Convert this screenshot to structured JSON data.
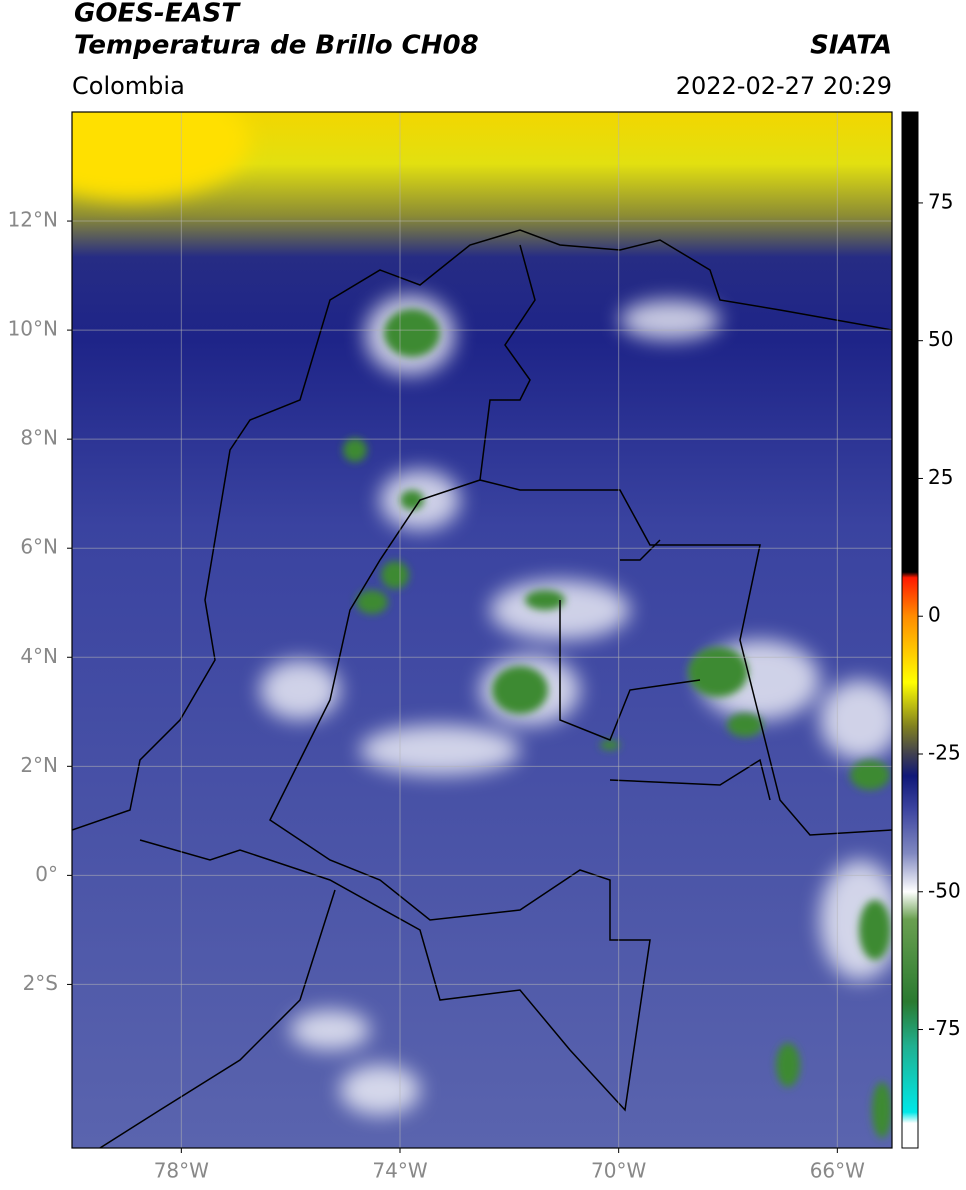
{
  "chart_data": {
    "type": "map",
    "title": "GOES-EAST",
    "subtitle": "Temperatura de Brillo CH08",
    "source": "SIATA",
    "region": "Colombia",
    "timestamp": "2022-02-27 20:29",
    "xlim": [
      -80,
      -65
    ],
    "ylim": [
      -5,
      14
    ],
    "xticks": [
      {
        "value": -78,
        "label": "78°W"
      },
      {
        "value": -74,
        "label": "74°W"
      },
      {
        "value": -70,
        "label": "70°W"
      },
      {
        "value": -66,
        "label": "66°W"
      }
    ],
    "yticks": [
      {
        "value": -2,
        "label": "2°S"
      },
      {
        "value": 0,
        "label": "0°"
      },
      {
        "value": 2,
        "label": "2°N"
      },
      {
        "value": 4,
        "label": "4°N"
      },
      {
        "value": 6,
        "label": "6°N"
      },
      {
        "value": 8,
        "label": "8°N"
      },
      {
        "value": 10,
        "label": "10°N"
      },
      {
        "value": 12,
        "label": "12°N"
      }
    ],
    "grid": true,
    "colorbar": {
      "lim": [
        -96.5,
        91.5
      ],
      "ticks": [
        -75,
        -50,
        -25,
        0,
        25,
        50,
        75
      ],
      "stops": [
        {
          "value": 91.5,
          "color": "#000000"
        },
        {
          "value": 8,
          "color": "#000000"
        },
        {
          "value": 7,
          "color": "#ff1a00"
        },
        {
          "value": 0,
          "color": "#ff8c00"
        },
        {
          "value": -12,
          "color": "#ffff00"
        },
        {
          "value": -20,
          "color": "#808020"
        },
        {
          "value": -25,
          "color": "#404050"
        },
        {
          "value": -29,
          "color": "#101878"
        },
        {
          "value": -35,
          "color": "#3c44a0"
        },
        {
          "value": -43,
          "color": "#8088c0"
        },
        {
          "value": -50,
          "color": "#ffffff"
        },
        {
          "value": -55,
          "color": "#6aa050"
        },
        {
          "value": -70,
          "color": "#2a7a30"
        },
        {
          "value": -78,
          "color": "#20b090"
        },
        {
          "value": -90,
          "color": "#00e8e8"
        },
        {
          "value": -92,
          "color": "#ffffff"
        },
        {
          "value": -96.5,
          "color": "#ffffff"
        }
      ]
    }
  }
}
